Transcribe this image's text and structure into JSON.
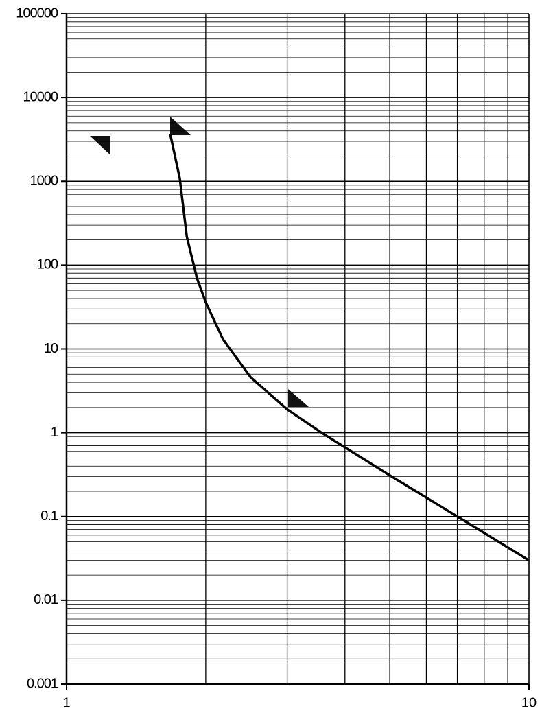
{
  "chart_data": {
    "type": "line",
    "x": [
      1.675,
      1.757,
      1.82,
      1.914,
      2,
      2.18,
      2.5,
      3,
      3.58,
      5,
      7,
      10
    ],
    "series": [
      {
        "color": "#000000",
        "values": [
          3700,
          1090,
          219,
          70,
          36,
          13,
          4.6,
          1.9,
          0.98,
          0.31,
          0.1,
          0.03
        ]
      }
    ],
    "xlim": [
      1,
      10
    ],
    "xticks": [
      1,
      10
    ],
    "xscale": "log",
    "ylim": [
      0.001,
      100000
    ],
    "yticks": [
      0.001,
      0.01,
      0.1,
      1,
      10,
      100,
      1000,
      10000,
      100000
    ],
    "yscale": "log",
    "grid": true
  }
}
